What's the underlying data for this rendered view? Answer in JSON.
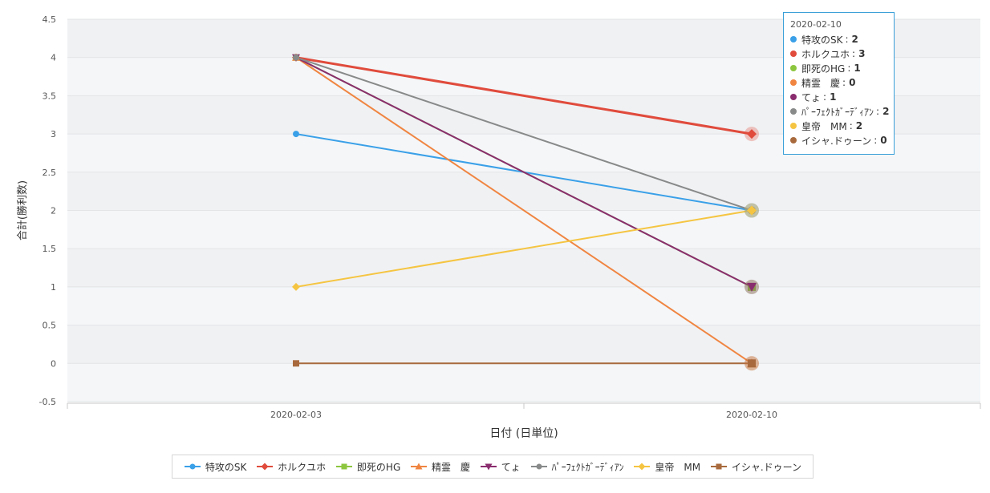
{
  "chart_data": {
    "type": "line",
    "x": [
      "2020-02-03",
      "2020-02-10"
    ],
    "xlabel": "日付 (日単位)",
    "ylabel": "合計(勝利数)",
    "ylim": [
      -0.5,
      4.5
    ],
    "yticks": [
      -0.5,
      0,
      0.5,
      1,
      1.5,
      2,
      2.5,
      3,
      3.5,
      4,
      4.5
    ],
    "ytick_labels": [
      "-0.5",
      "0",
      "0.5",
      "1",
      "1.5",
      "2",
      "2.5",
      "3",
      "3.5",
      "4",
      "4.5"
    ],
    "legend_position": "bottom",
    "series": [
      {
        "name": "特攻のSK",
        "values": [
          3,
          2
        ],
        "color": "#3aa0e8",
        "marker": "circle"
      },
      {
        "name": "ホルクユホ",
        "values": [
          4,
          3
        ],
        "color": "#e04b3c",
        "marker": "diamond"
      },
      {
        "name": "即死のHG",
        "values": [
          4,
          1
        ],
        "color": "#8cc63f",
        "marker": "square"
      },
      {
        "name": "精霊　慶",
        "values": [
          4,
          0
        ],
        "color": "#f08541",
        "marker": "triangle-up"
      },
      {
        "name": "てょ",
        "values": [
          4,
          1
        ],
        "color": "#8a2d6e",
        "marker": "triangle-down"
      },
      {
        "name": "ﾊﾟｰﾌｪｸﾄｶﾞｰﾃﾞｨｱﾝ",
        "values": [
          4,
          2
        ],
        "color": "#888a8a",
        "marker": "circle"
      },
      {
        "name": "皇帝　MM",
        "values": [
          1,
          2
        ],
        "color": "#f5c542",
        "marker": "diamond"
      },
      {
        "name": "イシャ.ドゥーン",
        "values": [
          0,
          0
        ],
        "color": "#a86a3d",
        "marker": "square"
      }
    ],
    "highlighted_x": "2020-02-10",
    "highlighted_series": "ホルクユホ"
  },
  "tooltip": {
    "date": "2020-02-10",
    "rows": [
      {
        "name": "特攻のSK",
        "value": "2",
        "color": "#3aa0e8"
      },
      {
        "name": "ホルクユホ",
        "value": "3",
        "color": "#e04b3c"
      },
      {
        "name": "即死のHG",
        "value": "1",
        "color": "#8cc63f"
      },
      {
        "name": "精霊　慶",
        "value": "0",
        "color": "#f08541"
      },
      {
        "name": "てょ",
        "value": "1",
        "color": "#8a2d6e"
      },
      {
        "name": "ﾊﾟｰﾌｪｸﾄｶﾞｰﾃﾞｨｱﾝ",
        "value": "2",
        "color": "#888a8a"
      },
      {
        "name": "皇帝　MM",
        "value": "2",
        "color": "#f5c542"
      },
      {
        "name": "イシャ.ドゥーン",
        "value": "0",
        "color": "#a86a3d"
      }
    ]
  }
}
